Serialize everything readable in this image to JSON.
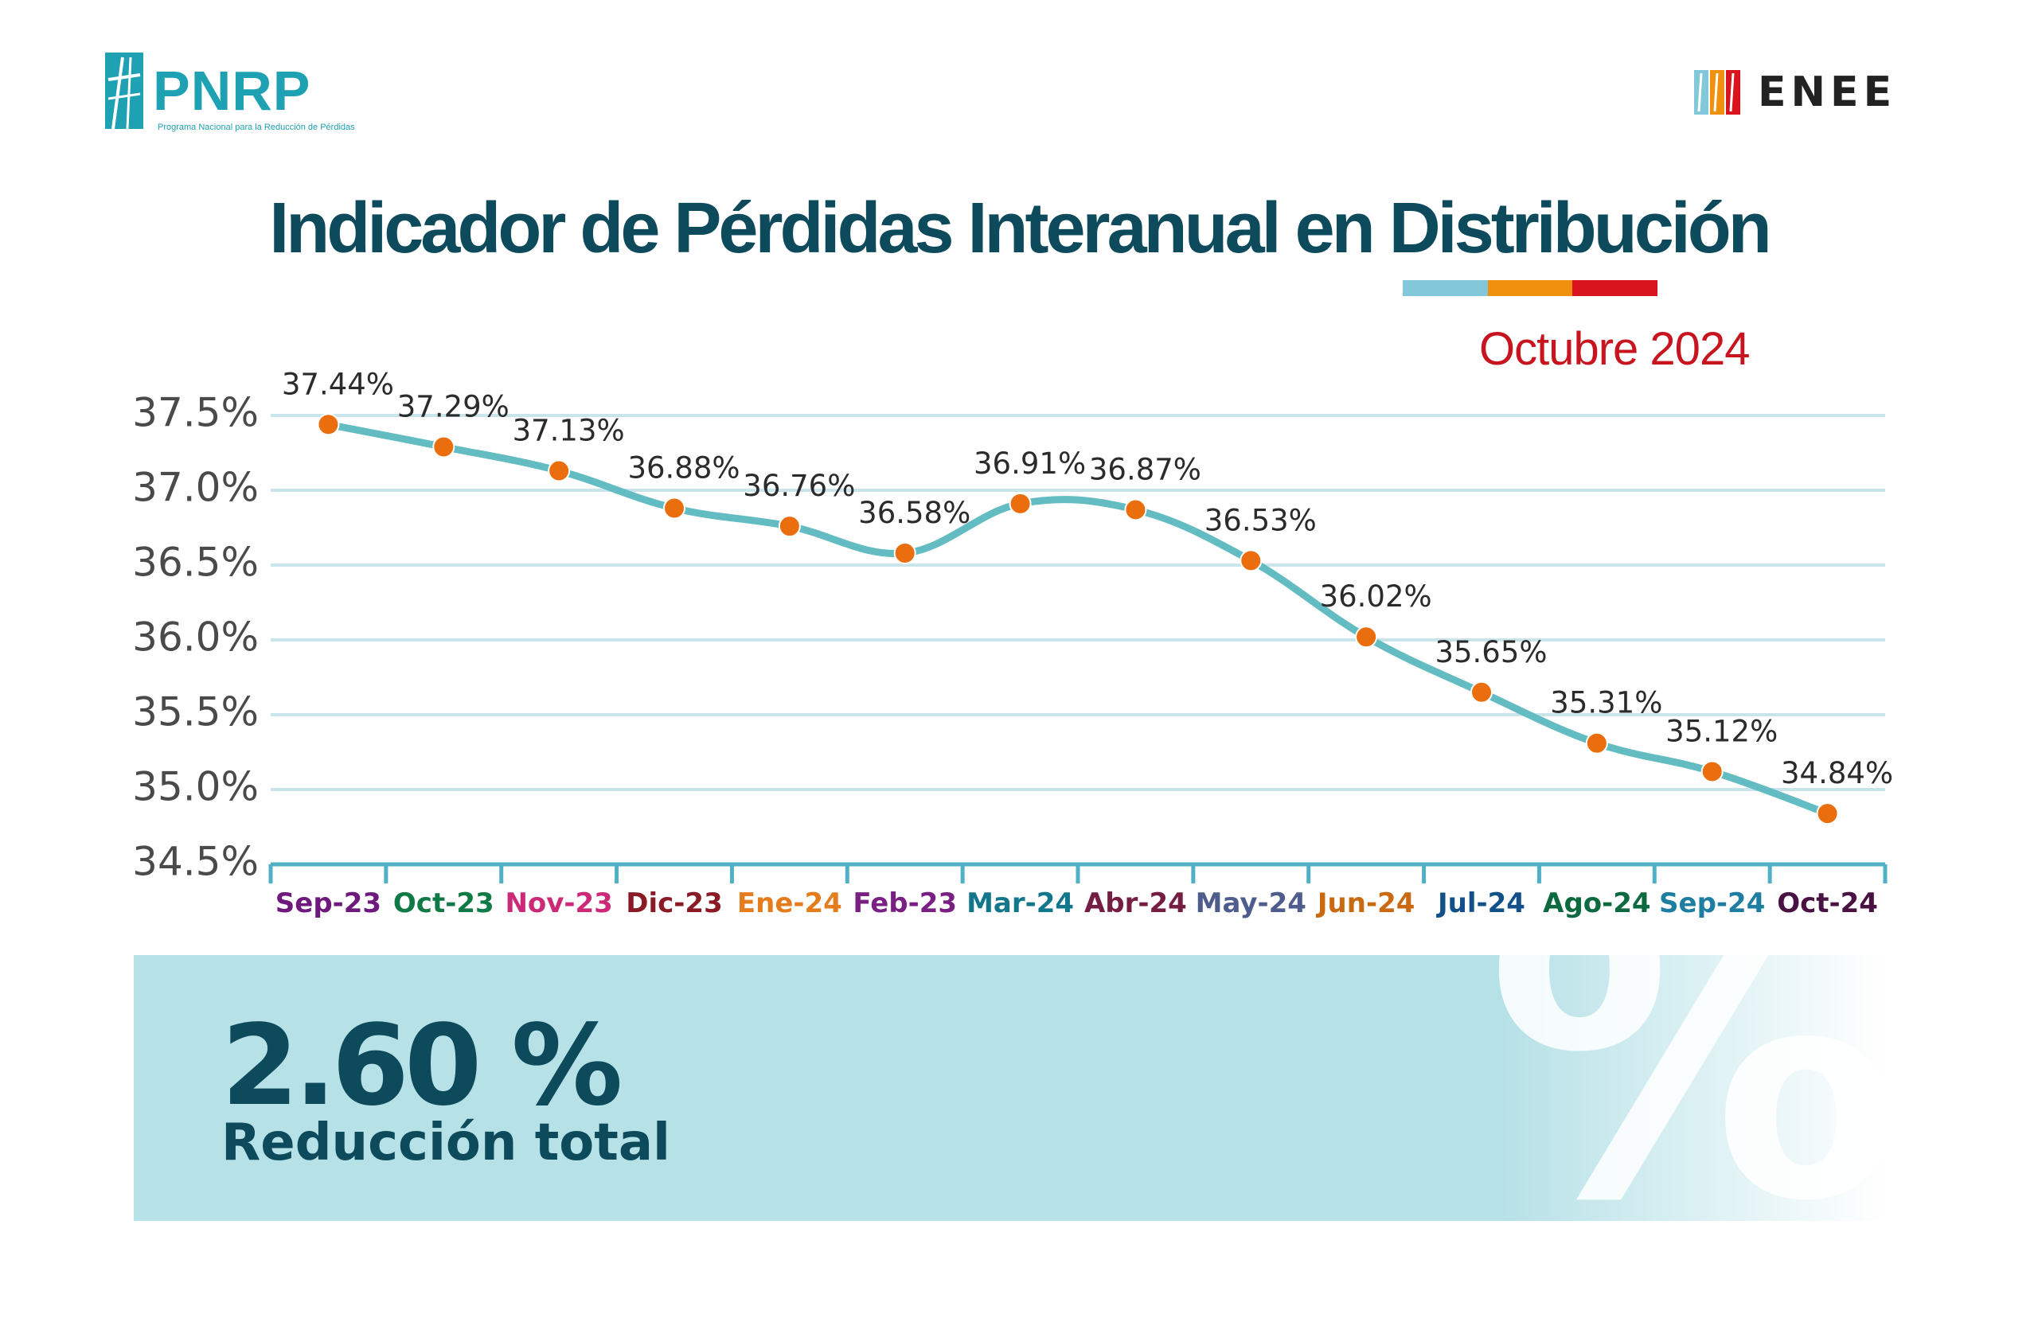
{
  "header": {
    "left_logo": {
      "name": "PNRP",
      "subtitle": "Programa Nacional para la Reducción de Pérdidas"
    },
    "right_logo": {
      "name": "ENEE"
    },
    "accent_bar_colors": [
      "#82c8da",
      "#f0900f",
      "#d9141e"
    ]
  },
  "colors": {
    "line": "#62bcc2",
    "marker": "#ea6e0e",
    "grid": "#c9e5ea",
    "axis": "#4fb0c6",
    "title": "#0d4a5c",
    "subtitle": "#c8141e"
  },
  "chart_data": {
    "type": "line",
    "title": "Indicador de Pérdidas Interanual en Distribución",
    "subtitle": "Octubre 2024",
    "categories": [
      "Sep-23",
      "Oct-23",
      "Nov-23",
      "Dic-23",
      "Ene-24",
      "Feb-23",
      "Mar-24",
      "Abr-24",
      "May-24",
      "Jun-24",
      "Jul-24",
      "Ago-24",
      "Sep-24",
      "Oct-24"
    ],
    "category_colors": [
      "#6e1a7d",
      "#0f7a45",
      "#cc2a78",
      "#8a1a26",
      "#e57d1e",
      "#7a1f84",
      "#13778c",
      "#751d42",
      "#4f5d8c",
      "#c96a12",
      "#12508a",
      "#0d6a40",
      "#1e7ea2",
      "#4a1242"
    ],
    "values": [
      37.44,
      37.29,
      37.13,
      36.88,
      36.76,
      36.58,
      36.91,
      36.87,
      36.53,
      36.02,
      35.65,
      35.31,
      35.12,
      34.84
    ],
    "labels": [
      "37.44%",
      "37.29%",
      "37.13%",
      "36.88%",
      "36.76%",
      "36.58%",
      "36.91%",
      "36.87%",
      "36.53%",
      "36.02%",
      "35.65%",
      "35.31%",
      "35.12%",
      "34.84%"
    ],
    "yticks": [
      "37.5%",
      "37.0%",
      "36.5%",
      "36.0%",
      "35.5%",
      "35.0%",
      "34.5%"
    ],
    "ytick_values": [
      37.5,
      37.0,
      36.5,
      36.0,
      35.5,
      35.0,
      34.5
    ],
    "ylim": [
      34.5,
      37.5
    ],
    "grid": true,
    "legend": "none"
  },
  "summary": {
    "value": "2.60 %",
    "label": "Reducción total",
    "background_symbol": "%"
  }
}
